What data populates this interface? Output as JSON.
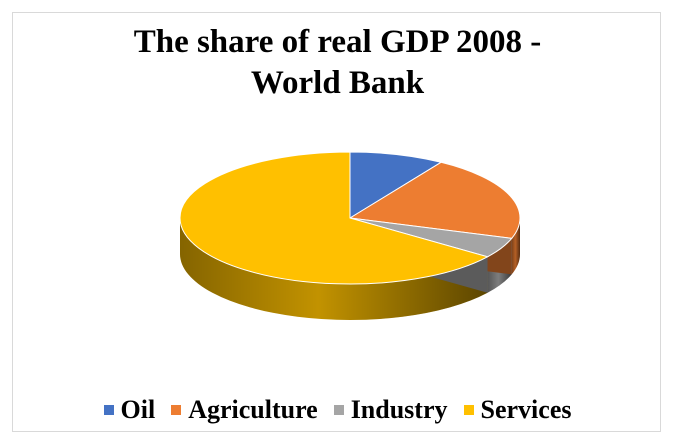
{
  "chart_data": {
    "type": "pie",
    "title_lines": [
      "The share of real GDP 2008 -",
      "World Bank"
    ],
    "categories": [
      "Oil",
      "Agriculture",
      "Industry",
      "Services"
    ],
    "values": [
      9,
      21,
      5,
      65
    ],
    "colors": [
      "#4472c4",
      "#ed7d31",
      "#a5a5a5",
      "#ffc000"
    ],
    "style": "3d",
    "legend_position": "bottom"
  }
}
